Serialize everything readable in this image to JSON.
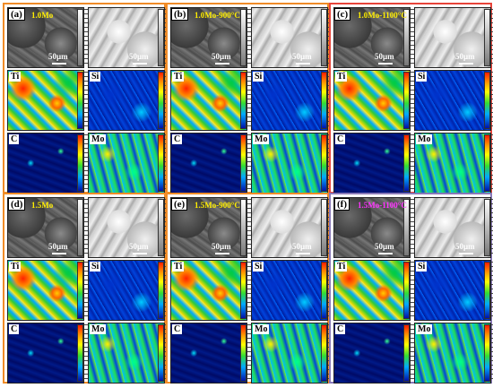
{
  "panels": [
    {
      "id": "a",
      "label": "(a)",
      "condition": "1.0Mo",
      "condition_color": "#ffee00",
      "border": "#f08c28",
      "scale": "50μm"
    },
    {
      "id": "b",
      "label": "(b)",
      "condition": "1.0Mo-900°C",
      "condition_color": "#ffee00",
      "border": "#f08c28",
      "scale": "50μm"
    },
    {
      "id": "c",
      "label": "(c)",
      "condition": "1.0Mo-1100°C",
      "condition_color": "#ffee00",
      "border": "#e8443a",
      "scale": "50μm"
    },
    {
      "id": "d",
      "label": "(d)",
      "condition": "1.5Mo",
      "condition_color": "#ffee00",
      "border": "#f08c28",
      "scale": "50μm"
    },
    {
      "id": "e",
      "label": "(e)",
      "condition": "1.5Mo-900°C",
      "condition_color": "#ffee00",
      "border": "#f08c28",
      "scale": "50μm"
    },
    {
      "id": "f",
      "label": "(f)",
      "condition": "1.5Mo-1100°C",
      "condition_color": "#ff33ff",
      "border": "#8878b8",
      "scale": "50μm"
    }
  ],
  "element_labels": {
    "ti": "Ti",
    "si": "Si",
    "c": "C",
    "mo": "Mo"
  }
}
